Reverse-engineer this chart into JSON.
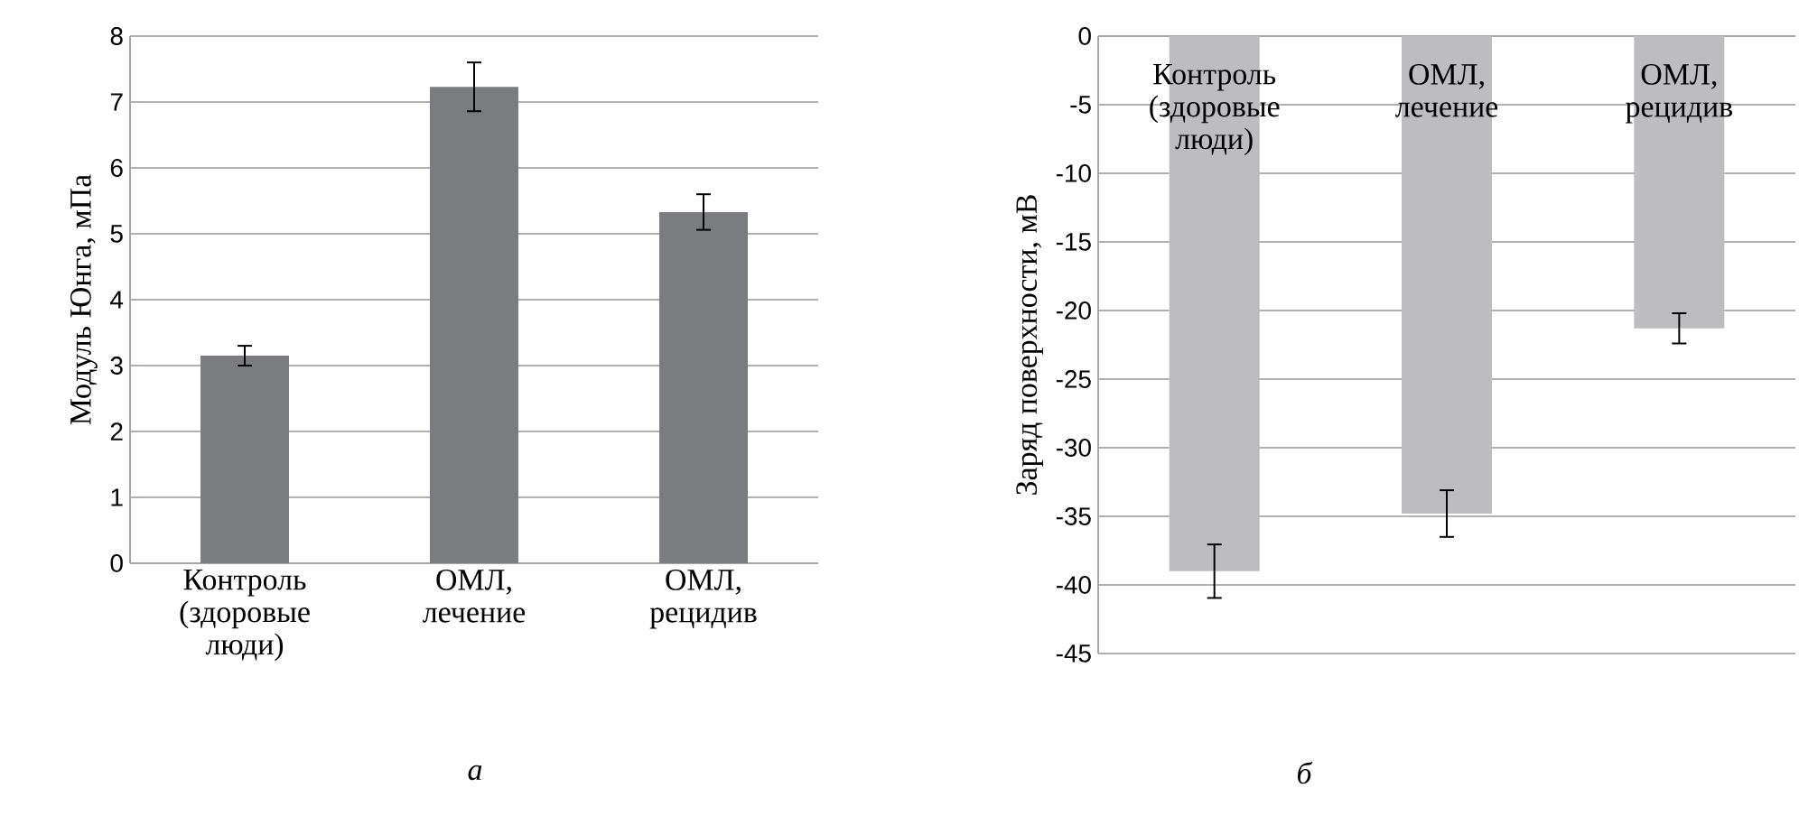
{
  "chart_data": [
    {
      "type": "bar",
      "categories": [
        "Контроль (здоровые люди)",
        "ОМЛ, лечение",
        "ОМЛ, рецидив"
      ],
      "values": [
        3.15,
        7.23,
        5.33
      ],
      "errors": [
        0.15,
        0.37,
        0.27
      ],
      "color": "#7b7c80",
      "ylabel": "Модуль Юнга, мПа",
      "ylim": [
        0,
        8
      ],
      "yticks": [
        0,
        1,
        2,
        3,
        4,
        5,
        6,
        7,
        8
      ],
      "grid": "y",
      "annotations": [
        "а"
      ]
    },
    {
      "type": "bar",
      "categories": [
        "Контроль (здоровые люди)",
        "ОМЛ, лечение",
        "ОМЛ, рецидив"
      ],
      "values": [
        -39.0,
        -34.8,
        -21.3
      ],
      "errors": [
        1.95,
        1.7,
        1.1
      ],
      "color": "#bdbdc0",
      "ylabel": "Заряд поверхности, мВ",
      "ylim": [
        -45,
        0
      ],
      "yticks": [
        -45,
        -40,
        -35,
        -30,
        -25,
        -20,
        -15,
        -10,
        -5,
        0
      ],
      "grid": "y",
      "annotations": [
        "б"
      ]
    }
  ]
}
